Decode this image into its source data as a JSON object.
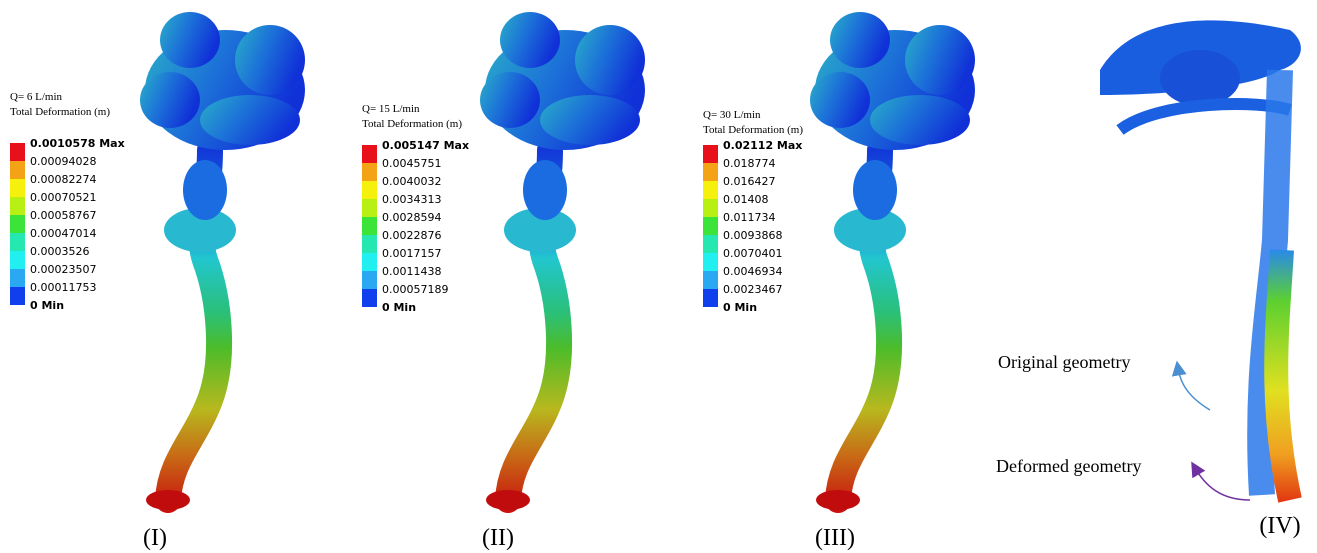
{
  "legend_colors": [
    "#e8101a",
    "#f5a316",
    "#f5f00c",
    "#b8f014",
    "#3ce43a",
    "#25e8b0",
    "#22f0f0",
    "#2aa8f2",
    "#1040ee"
  ],
  "panels": [
    {
      "label": "(I)",
      "legend_title": [
        "Q= 6 L/min",
        "Total Deformation (m)"
      ],
      "legend": [
        "0.0010578 Max",
        "0.00094028",
        "0.00082274",
        "0.00070521",
        "0.00058767",
        "0.00047014",
        "0.0003526",
        "0.00023507",
        "0.00011753",
        "0 Min"
      ]
    },
    {
      "label": "(II)",
      "legend_title": [
        "Q= 15 L/min",
        "Total Deformation (m)"
      ],
      "legend": [
        "0.005147 Max",
        "0.0045751",
        "0.0040032",
        "0.0034313",
        "0.0028594",
        "0.0022876",
        "0.0017157",
        "0.0011438",
        "0.00057189",
        "0 Min"
      ]
    },
    {
      "label": "(III)",
      "legend_title": [
        "Q= 30 L/min",
        "Total Deformation (m)"
      ],
      "legend": [
        "0.02112 Max",
        "0.018774",
        "0.016427",
        "0.01408",
        "0.011734",
        "0.0093868",
        "0.0070401",
        "0.0046934",
        "0.0023467",
        "0 Min"
      ]
    },
    {
      "label": "(IV)",
      "annotations": [
        "Original geometry",
        "Deformed geometry"
      ]
    }
  ]
}
